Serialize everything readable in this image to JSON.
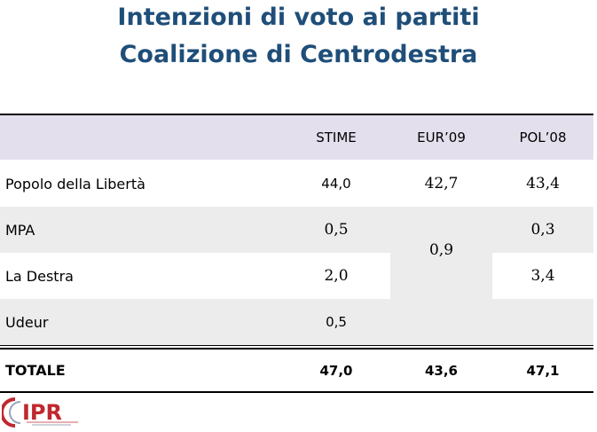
{
  "title": {
    "line1": "Intenzioni di voto ai partiti",
    "line2": "Coalizione di Centrodestra"
  },
  "table": {
    "columns": [
      "STIME",
      "EUR’09",
      "POL’08"
    ],
    "rows": [
      {
        "party": "Popolo della Libertà",
        "stime": "44,0",
        "eur09": "42,7",
        "pol08": "43,4"
      },
      {
        "party": "MPA",
        "stime": "0,5",
        "pol08": "0,3"
      },
      {
        "party": "La Destra",
        "stime": "2,0",
        "pol08": "3,4"
      },
      {
        "party": "Udeur",
        "stime": "0,5"
      }
    ],
    "eur09_merged": "0,9",
    "total": {
      "label": "TOTALE",
      "stime": "47,0",
      "eur09": "43,6",
      "pol08": "47,1"
    }
  },
  "logo": {
    "text": "IPR"
  },
  "colors": {
    "title": "#1f4e79",
    "header_bg": "#e4dfec",
    "shade_bg": "#ececec",
    "logo_red": "#c0282d"
  }
}
